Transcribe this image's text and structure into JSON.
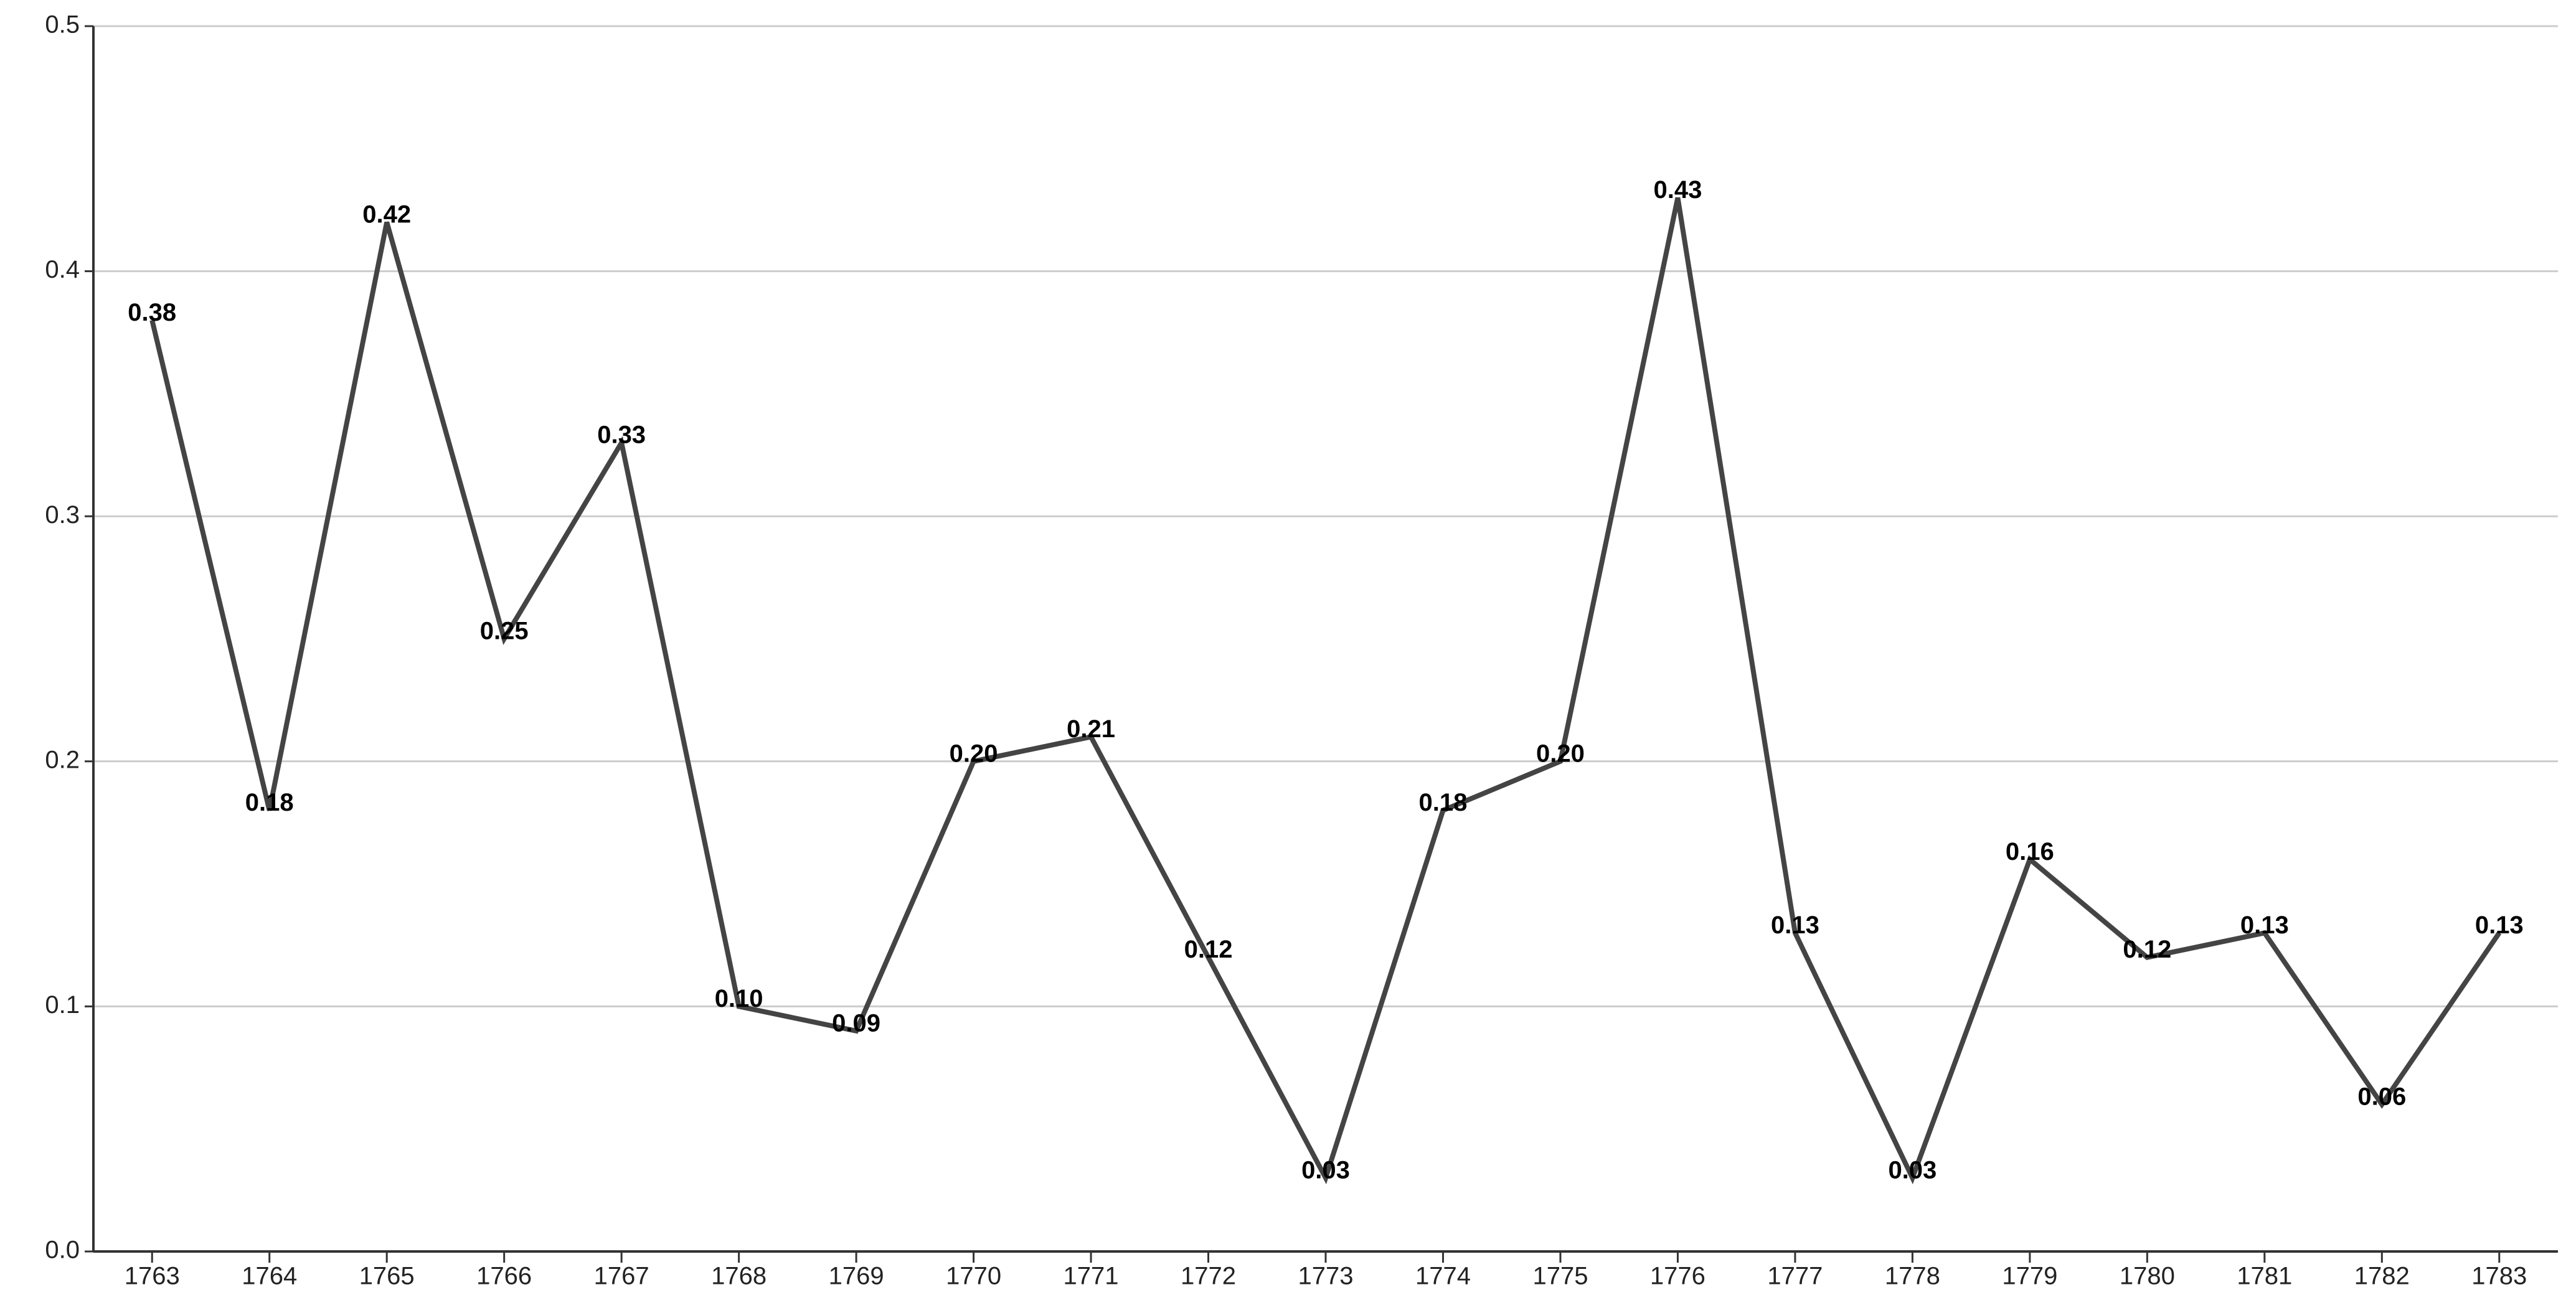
{
  "chart_data": {
    "type": "line",
    "categories": [
      "1763",
      "1764",
      "1765",
      "1766",
      "1767",
      "1768",
      "1769",
      "1770",
      "1771",
      "1772",
      "1773",
      "1774",
      "1775",
      "1776",
      "1777",
      "1778",
      "1779",
      "1780",
      "1781",
      "1782",
      "1783"
    ],
    "values": [
      0.38,
      0.18,
      0.42,
      0.25,
      0.33,
      0.1,
      0.09,
      0.2,
      0.21,
      0.12,
      0.03,
      0.18,
      0.2,
      0.43,
      0.13,
      0.03,
      0.16,
      0.12,
      0.13,
      0.06,
      0.13
    ],
    "value_labels": [
      "0.38",
      "0.18",
      "0.42",
      "0.25",
      "0.33",
      "0.10",
      "0.09",
      "0.20",
      "0.21",
      "0.12",
      "0.03",
      "0.18",
      "0.20",
      "0.43",
      "0.13",
      "0.03",
      "0.16",
      "0.12",
      "0.13",
      "0.06",
      "0.13"
    ],
    "color": "#444444",
    "ylim": [
      0,
      0.5
    ],
    "yticks": [
      {
        "value": 0,
        "label": "0.0"
      },
      0.1,
      0.2,
      0.3,
      0.4,
      0.5
    ],
    "grid": true
  }
}
